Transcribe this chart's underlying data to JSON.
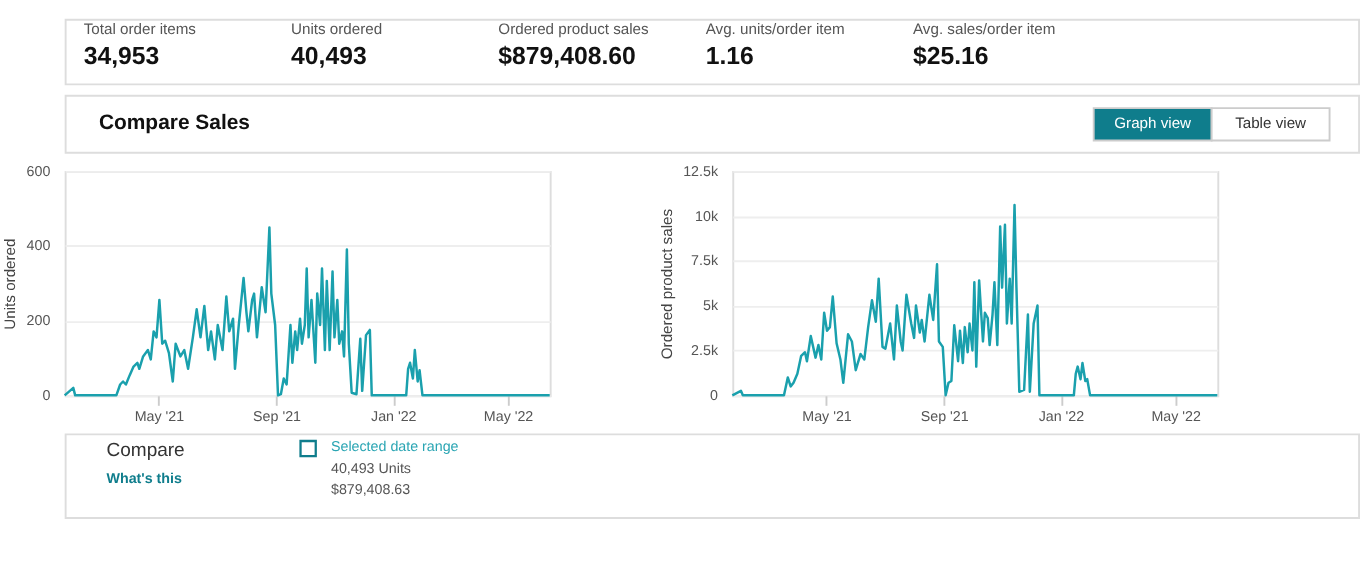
{
  "chart_data": [
    {
      "type": "other",
      "annotations": [
        "Total order items",
        "34,953",
        "Units ordered",
        "40,493",
        "Ordered product sales",
        "$879,408.60",
        "Avg. units/order item",
        "1.16",
        "Avg. sales/order item",
        "$25.16"
      ]
    },
    {
      "type": "other",
      "title": "Compare Sales",
      "annotations": [
        "Graph view",
        "Table view"
      ]
    },
    {
      "type": "line",
      "ylabel": "Units ordered",
      "color": "#1aa0ad",
      "grid": "y",
      "x": [
        "2021-01-23",
        "2021-02-01",
        "2021-02-03",
        "2021-03-18",
        "2021-03-22",
        "2021-03-25",
        "2021-03-28",
        "2021-04-01",
        "2021-04-05",
        "2021-04-09",
        "2021-04-11",
        "2021-04-15",
        "2021-04-20",
        "2021-04-23",
        "2021-04-26",
        "2021-04-29",
        "2021-05-02",
        "2021-05-05",
        "2021-05-08",
        "2021-05-12",
        "2021-05-16",
        "2021-05-19",
        "2021-05-24",
        "2021-05-28",
        "2021-06-01",
        "2021-06-06",
        "2021-06-10",
        "2021-06-14",
        "2021-06-18",
        "2021-06-22",
        "2021-06-25",
        "2021-06-29",
        "2021-07-02",
        "2021-07-07",
        "2021-07-11",
        "2021-07-14",
        "2021-07-18",
        "2021-07-20",
        "2021-07-24",
        "2021-07-29",
        "2021-08-01",
        "2021-08-03",
        "2021-08-07",
        "2021-08-09",
        "2021-08-12",
        "2021-08-17",
        "2021-08-21",
        "2021-08-25",
        "2021-08-27",
        "2021-08-31",
        "2021-09-03",
        "2021-09-06",
        "2021-09-09",
        "2021-09-12",
        "2021-09-16",
        "2021-09-18",
        "2021-09-21",
        "2021-09-23",
        "2021-09-26",
        "2021-09-28",
        "2021-10-01",
        "2021-10-03",
        "2021-10-05",
        "2021-10-08",
        "2021-10-12",
        "2021-10-14",
        "2021-10-17",
        "2021-10-19",
        "2021-10-22",
        "2021-10-24",
        "2021-10-27",
        "2021-10-30",
        "2021-11-01",
        "2021-11-04",
        "2021-11-06",
        "2021-11-09",
        "2021-11-11",
        "2021-11-14",
        "2021-11-16",
        "2021-11-19",
        "2021-11-24",
        "2021-11-28",
        "2021-11-30",
        "2021-12-04",
        "2021-12-08",
        "2021-12-10",
        "2022-01-15",
        "2022-01-17",
        "2022-01-19",
        "2022-01-22",
        "2022-01-24",
        "2022-01-27",
        "2022-01-29",
        "2022-02-01",
        "2022-06-14"
      ],
      "values": [
        0,
        20,
        0,
        0,
        29,
        37,
        29,
        54,
        77,
        87,
        71,
        104,
        121,
        96,
        171,
        155,
        255,
        138,
        146,
        113,
        37,
        138,
        104,
        121,
        71,
        155,
        230,
        155,
        239,
        121,
        171,
        96,
        188,
        121,
        264,
        171,
        205,
        71,
        188,
        314,
        222,
        171,
        255,
        272,
        155,
        289,
        222,
        449,
        272,
        188,
        0,
        3,
        45,
        29,
        188,
        87,
        171,
        121,
        205,
        138,
        188,
        339,
        155,
        255,
        87,
        272,
        188,
        339,
        121,
        306,
        121,
        331,
        155,
        255,
        138,
        171,
        104,
        390,
        138,
        7,
        3,
        151,
        12,
        161,
        175,
        0,
        0,
        71,
        87,
        45,
        121,
        37,
        67,
        0,
        0
      ],
      "xlim": [
        "2021-01-23",
        "2022-06-14"
      ],
      "xticks": [
        {
          "value": "2021-05-01",
          "label": "May '21"
        },
        {
          "value": "2021-09-01",
          "label": "Sep '21"
        },
        {
          "value": "2022-01-01",
          "label": "Jan '22"
        },
        {
          "value": "2022-05-01",
          "label": "May '22"
        }
      ],
      "ylim": [
        0,
        600
      ],
      "yticks": [
        0,
        200,
        400,
        600
      ]
    },
    {
      "type": "line",
      "ylabel": "Ordered product sales",
      "color": "#1aa0ad",
      "grid": "y",
      "x": [
        "2021-01-23",
        "2021-02-01",
        "2021-02-03",
        "2021-03-18",
        "2021-03-22",
        "2021-03-25",
        "2021-03-28",
        "2021-04-01",
        "2021-04-05",
        "2021-04-09",
        "2021-04-11",
        "2021-04-15",
        "2021-04-20",
        "2021-04-23",
        "2021-04-26",
        "2021-04-29",
        "2021-05-02",
        "2021-05-05",
        "2021-05-08",
        "2021-05-12",
        "2021-05-16",
        "2021-05-19",
        "2021-05-24",
        "2021-05-28",
        "2021-06-01",
        "2021-06-06",
        "2021-06-10",
        "2021-06-14",
        "2021-06-18",
        "2021-06-22",
        "2021-06-25",
        "2021-06-29",
        "2021-07-02",
        "2021-07-07",
        "2021-07-11",
        "2021-07-14",
        "2021-07-18",
        "2021-07-20",
        "2021-07-24",
        "2021-07-29",
        "2021-08-01",
        "2021-08-03",
        "2021-08-07",
        "2021-08-09",
        "2021-08-12",
        "2021-08-17",
        "2021-08-21",
        "2021-08-25",
        "2021-08-27",
        "2021-08-31",
        "2021-09-03",
        "2021-09-06",
        "2021-09-09",
        "2021-09-12",
        "2021-09-16",
        "2021-09-18",
        "2021-09-21",
        "2021-09-23",
        "2021-09-26",
        "2021-09-28",
        "2021-10-01",
        "2021-10-03",
        "2021-10-05",
        "2021-10-08",
        "2021-10-12",
        "2021-10-14",
        "2021-10-17",
        "2021-10-19",
        "2021-10-22",
        "2021-10-24",
        "2021-10-27",
        "2021-10-30",
        "2021-11-01",
        "2021-11-04",
        "2021-11-06",
        "2021-11-09",
        "2021-11-11",
        "2021-11-14",
        "2021-11-16",
        "2021-11-19",
        "2021-11-24",
        "2021-11-28",
        "2021-11-30",
        "2021-12-04",
        "2021-12-08",
        "2021-12-10",
        "2022-01-15",
        "2022-01-17",
        "2022-01-19",
        "2022-01-22",
        "2022-01-24",
        "2022-01-27",
        "2022-01-29",
        "2022-02-01",
        "2022-06-14"
      ],
      "values": [
        0,
        250,
        0,
        0,
        1000,
        500,
        700,
        1200,
        2200,
        2400,
        1900,
        3300,
        2100,
        2800,
        2000,
        4600,
        3600,
        3800,
        5500,
        2900,
        2000,
        700,
        3400,
        3000,
        1400,
        2300,
        2000,
        3800,
        5300,
        4100,
        6500,
        2700,
        2600,
        4000,
        2000,
        5000,
        3000,
        2500,
        5600,
        4000,
        3200,
        5000,
        3500,
        4200,
        3000,
        5600,
        4200,
        7300,
        3000,
        2700,
        0,
        700,
        800,
        3900,
        1900,
        3600,
        1800,
        3800,
        2400,
        4000,
        2500,
        6300,
        1600,
        6400,
        3000,
        4600,
        4300,
        2800,
        4500,
        6300,
        2800,
        9400,
        6000,
        9500,
        4000,
        6500,
        4000,
        10600,
        6000,
        200,
        300,
        4500,
        200,
        4000,
        5000,
        0,
        0,
        1200,
        1600,
        900,
        1800,
        800,
        900,
        0,
        0
      ],
      "xlim": [
        "2021-01-23",
        "2022-06-14"
      ],
      "xticks": [
        {
          "value": "2021-05-01",
          "label": "May '21"
        },
        {
          "value": "2021-09-01",
          "label": "Sep '21"
        },
        {
          "value": "2022-01-01",
          "label": "Jan '22"
        },
        {
          "value": "2022-05-01",
          "label": "May '22"
        }
      ],
      "ylim": [
        0,
        12500
      ],
      "yticks": [
        0,
        {
          "value": 2500,
          "label": "2.5k"
        },
        {
          "value": 5000,
          "label": "5k"
        },
        {
          "value": 7500,
          "label": "7.5k"
        },
        {
          "value": 10000,
          "label": "10k"
        },
        {
          "value": 12500,
          "label": "12.5k"
        }
      ]
    },
    {
      "type": "other",
      "title": "Compare",
      "annotations": [
        "What's this",
        "Selected date range",
        "40,493 Units",
        "$879,408.63"
      ]
    }
  ]
}
